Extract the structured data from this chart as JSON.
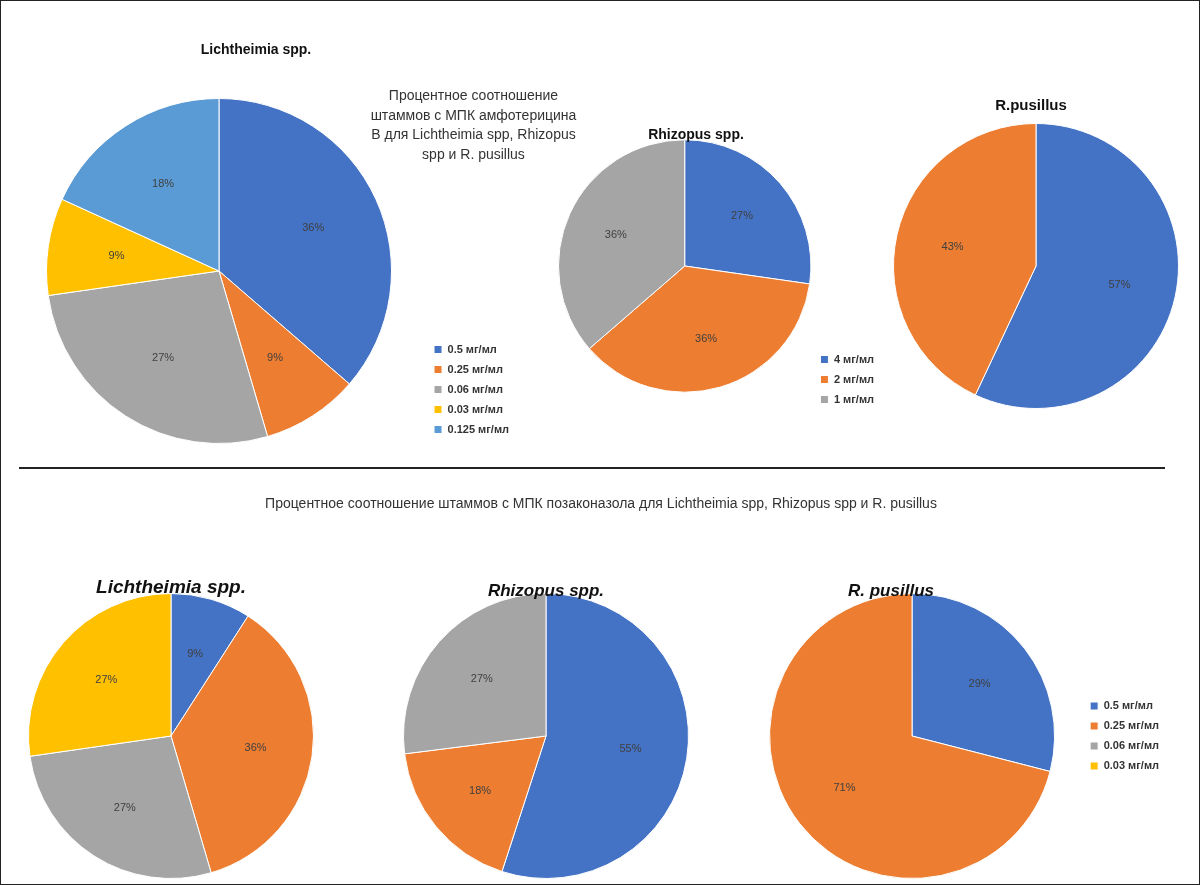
{
  "chart_data": [
    {
      "type": "pie",
      "title": "Lichtheimia spp.",
      "categories": [
        "0.5 мг/мл",
        "0.25 мг/мл",
        "0.06 мг/мл",
        "0.03 мг/мл",
        "0.125 мг/мл"
      ],
      "values": [
        36,
        9,
        27,
        9,
        18
      ],
      "value_labels": [
        "36%",
        "9%",
        "27%",
        "9%",
        "18%"
      ],
      "colors": [
        "#4472c4",
        "#ed7d31",
        "#a5a5a5",
        "#ffc000",
        "#5b9bd5"
      ],
      "legend": "bottom right",
      "annotations": [
        "Процентное соотношение штаммов с МПК амфотерицина В для Lichtheimia spp, Rhizopus spp и R. pusillus"
      ]
    },
    {
      "type": "pie",
      "title": "Rhizopus spp.",
      "categories": [
        "4 мг/мл",
        "2 мг/мл",
        "1 мг/мл"
      ],
      "values": [
        27,
        36,
        36
      ],
      "value_labels": [
        "27%",
        "36%",
        "36%"
      ],
      "colors": [
        "#4472c4",
        "#ed7d31",
        "#a5a5a5"
      ],
      "legend": "bottom right"
    },
    {
      "type": "pie",
      "title": "R.pusillus",
      "categories": [
        null,
        null
      ],
      "values": [
        57,
        43
      ],
      "value_labels": [
        "57%",
        "43%"
      ],
      "colors": [
        "#4472c4",
        "#ed7d31"
      ]
    },
    {
      "type": "pie",
      "title": "Lichtheimia spp.",
      "categories": [
        null,
        null,
        null,
        null
      ],
      "values": [
        9,
        36,
        27,
        27
      ],
      "value_labels": [
        "9%",
        "36%",
        "27%",
        "27%"
      ],
      "colors": [
        "#4472c4",
        "#ed7d31",
        "#a5a5a5",
        "#ffc000"
      ],
      "annotations": [
        "Процентное соотношение штаммов с МПК позаконазола для Lichtheimia spp, Rhizopus spp и R. pusillus"
      ]
    },
    {
      "type": "pie",
      "title": "Rhizopus spp.",
      "categories": [
        null,
        null,
        null
      ],
      "values": [
        55,
        18,
        27
      ],
      "value_labels": [
        "55%",
        "18%",
        "27%"
      ],
      "colors": [
        "#4472c4",
        "#ed7d31",
        "#a5a5a5"
      ]
    },
    {
      "type": "pie",
      "title": "R. pusillus",
      "categories": [
        "0.5 мг/мл",
        "0.25 мг/мл",
        "0.06 мг/мл",
        "0.03 мг/мл"
      ],
      "values": [
        29,
        71,
        null,
        null
      ],
      "value_labels": [
        "29%",
        "71%",
        null,
        null
      ],
      "colors": [
        "#4472c4",
        "#ed7d31",
        "#a5a5a5",
        "#ffc000"
      ],
      "legend": "right"
    }
  ]
}
